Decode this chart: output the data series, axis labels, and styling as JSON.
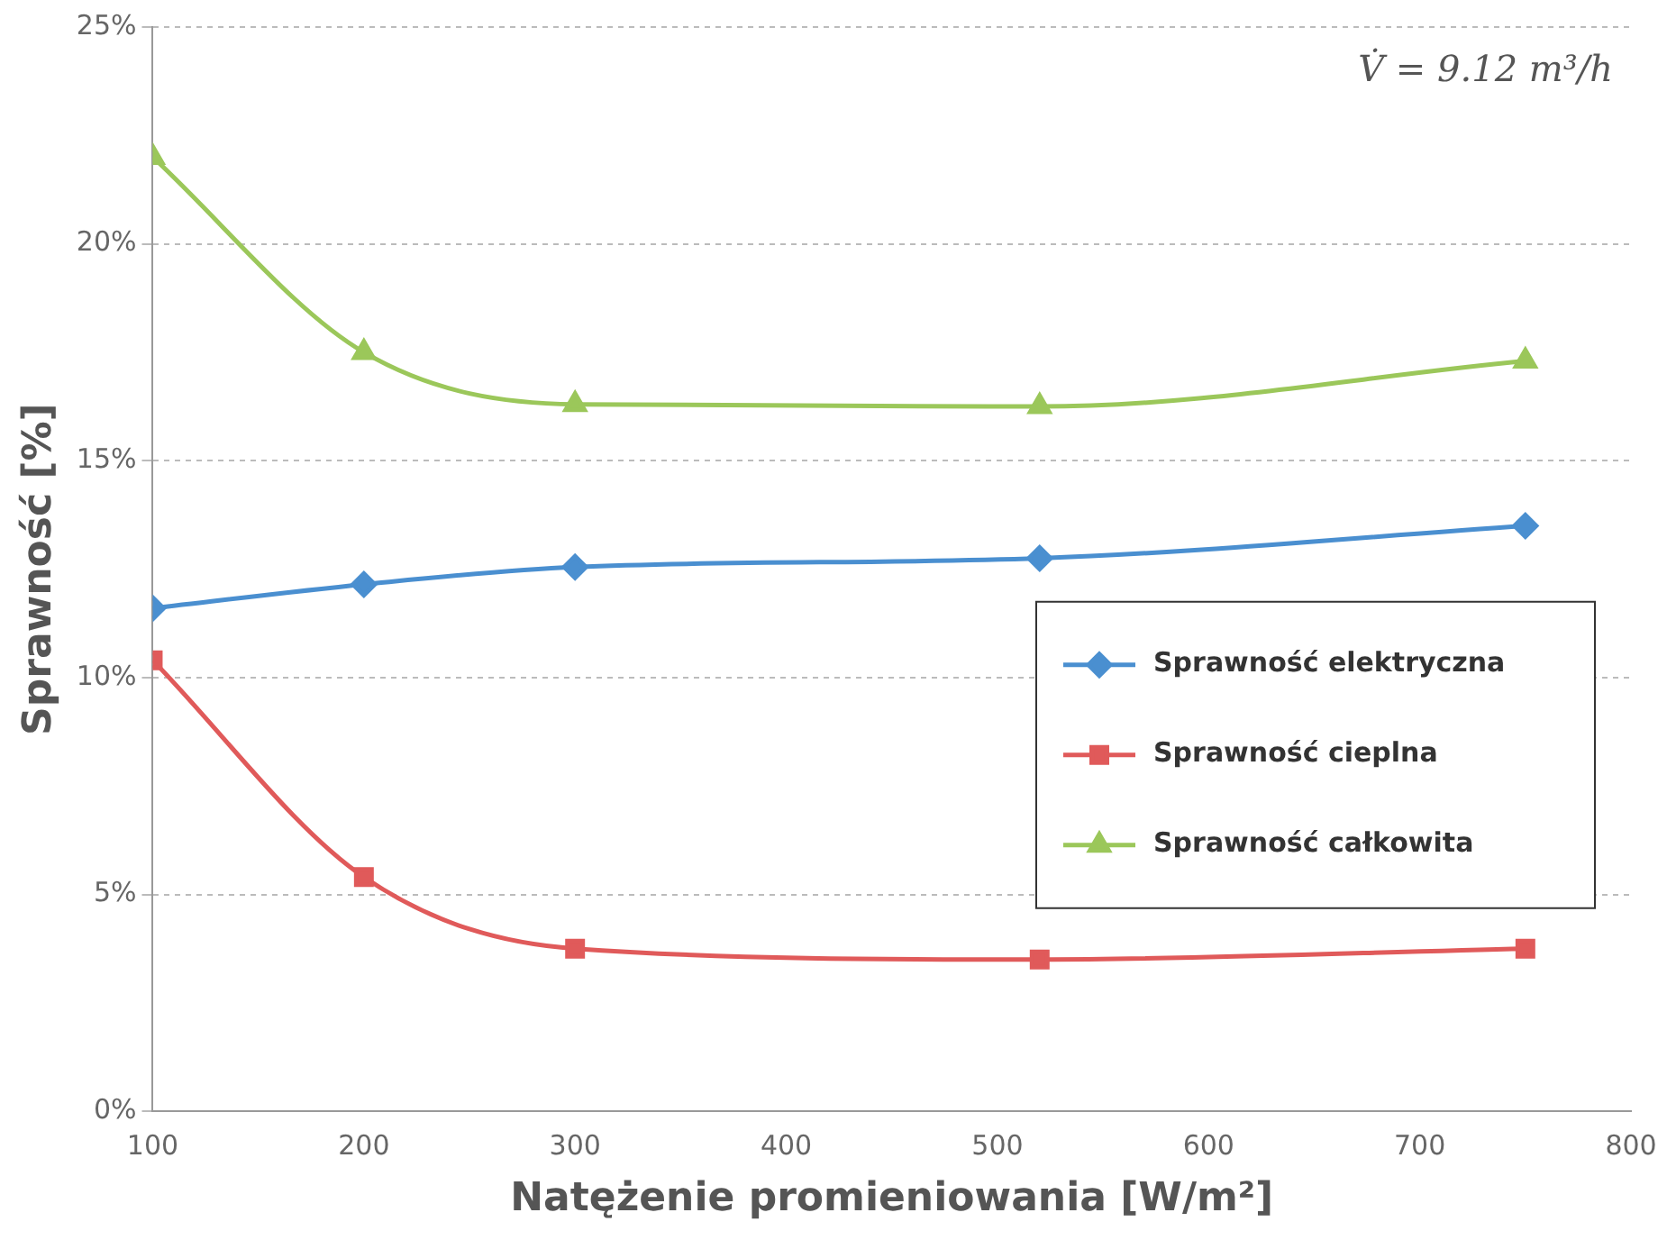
{
  "chart_data": {
    "type": "line",
    "xlabel": "Natężenie promieniowania [W/m²]",
    "ylabel": "Sprawność [%]",
    "x": [
      100,
      200,
      300,
      520,
      750
    ],
    "series": [
      {
        "name": "Sprawność elektryczna",
        "color": "#4a8fd0",
        "marker": "diamond",
        "values": [
          11.6,
          12.15,
          12.55,
          12.75,
          13.5
        ]
      },
      {
        "name": "Sprawność cieplna",
        "color": "#e05a5a",
        "marker": "square",
        "values": [
          10.4,
          5.4,
          3.75,
          3.5,
          3.75
        ]
      },
      {
        "name": "Sprawność całkowita",
        "color": "#9bc75a",
        "marker": "triangle",
        "values": [
          22.0,
          17.5,
          16.3,
          16.25,
          17.3
        ]
      }
    ],
    "xlim": [
      100,
      800
    ],
    "xticks": [
      100,
      200,
      300,
      400,
      500,
      600,
      700,
      800
    ],
    "ylim": [
      0,
      25
    ],
    "yticks": [
      {
        "value": 0,
        "label": "0%"
      },
      {
        "value": 5,
        "label": "5%"
      },
      {
        "value": 10,
        "label": "10%"
      },
      {
        "value": 15,
        "label": "15%"
      },
      {
        "value": 20,
        "label": "20%"
      },
      {
        "value": 25,
        "label": "25%"
      }
    ],
    "grid": "y",
    "legend": "right",
    "line_style": "solid",
    "annotations": [
      "V̇ = 9.12 m³/h"
    ]
  }
}
